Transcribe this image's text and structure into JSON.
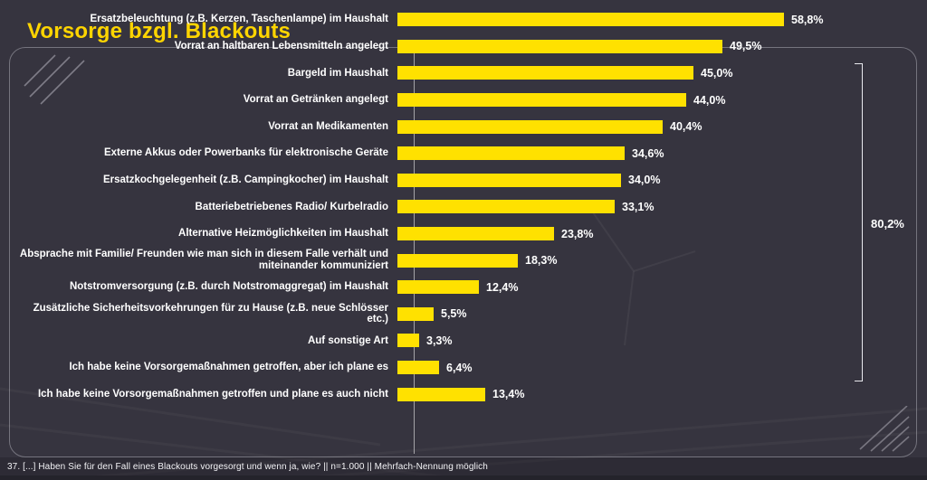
{
  "title": "Vorsorge bzgl. Blackouts",
  "footer": "37. [...] Haben Sie für den Fall eines Blackouts vorgesorgt und wenn ja, wie? || n=1.000 || Mehrfach-Nennung möglich",
  "colors": {
    "background": "#36343F",
    "bar": "#FFE100",
    "title": "#FFD500",
    "text": "#FFFFFF",
    "bracket": "#E9E9EE",
    "card_border": "#8B8995"
  },
  "chart_data": {
    "type": "bar",
    "orientation": "horizontal",
    "title": "Vorsorge bzgl. Blackouts",
    "xlabel": "",
    "ylabel": "",
    "xlim": [
      0,
      62
    ],
    "grid": false,
    "legend": "none",
    "categories": [
      "Ersatzbeleuchtung (z.B. Kerzen, Taschenlampe) im Haushalt",
      "Vorrat an haltbaren Lebensmitteln angelegt",
      "Bargeld im Haushalt",
      "Vorrat an Getränken angelegt",
      "Vorrat an Medikamenten",
      "Externe Akkus oder Powerbanks für elektronische Geräte",
      "Ersatzkochgelegenheit (z.B. Campingkocher) im Haushalt",
      "Batteriebetriebenes Radio/ Kurbelradio",
      "Alternative Heizmöglichkeiten im Haushalt",
      "Absprache mit Familie/ Freunden wie man sich in diesem Falle verhält und miteinander kommuniziert",
      "Notstromversorgung (z.B. durch Notstromaggregat) im Haushalt",
      "Zusätzliche Sicherheitsvorkehrungen für zu Hause (z.B. neue Schlösser etc.)",
      "Auf sonstige Art",
      "Ich habe keine Vorsorgemaßnahmen getroffen, aber ich plane es",
      "Ich habe keine Vorsorgemaßnahmen getroffen und plane es auch nicht"
    ],
    "values": [
      58.8,
      49.5,
      45.0,
      44.0,
      40.4,
      34.6,
      34.0,
      33.1,
      23.8,
      18.3,
      12.4,
      5.5,
      3.3,
      6.4,
      13.4
    ],
    "value_labels": [
      "58,8%",
      "49,5%",
      "45,0%",
      "44,0%",
      "40,4%",
      "34,6%",
      "34,0%",
      "33,1%",
      "23,8%",
      "18,3%",
      "12,4%",
      "5,5%",
      "3,3%",
      "6,4%",
      "13,4%"
    ],
    "annotations": {
      "bracket": {
        "label": "80,2%",
        "from_category_index": 0,
        "to_category_index": 12,
        "side": "right"
      }
    }
  }
}
